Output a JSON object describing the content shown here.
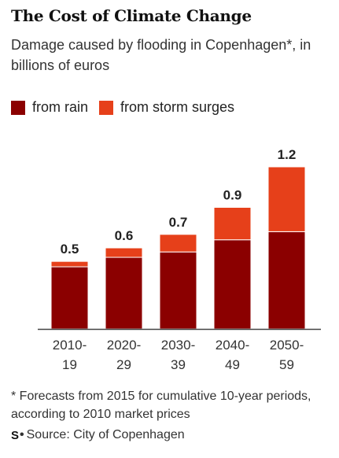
{
  "header": {
    "title": "The Cost of Climate Change",
    "subtitle": "Damage caused by flooding in Copenhagen*, in billions of euros"
  },
  "legend": {
    "rain_label": "from rain",
    "surge_label": "from storm surges"
  },
  "footer": {
    "footnote": "* Forecasts from 2015 for cumulative 10-year periods, according to 2010 market prices",
    "source_logo": "S",
    "source_dot": "•",
    "source_text": "Source: City of Copenhagen"
  },
  "colors": {
    "rain": "#8b0000",
    "surge": "#e6401a",
    "axis": "#444444"
  },
  "chart_data": {
    "type": "bar",
    "stacked": true,
    "categories": [
      "2010-19",
      "2020-29",
      "2030-39",
      "2040-49",
      "2050-59"
    ],
    "category_lines": [
      [
        "2010-",
        "19"
      ],
      [
        "2020-",
        "29"
      ],
      [
        "2030-",
        "39"
      ],
      [
        "2040-",
        "49"
      ],
      [
        "2050-",
        "59"
      ]
    ],
    "series": [
      {
        "name": "from rain",
        "values": [
          0.46,
          0.53,
          0.57,
          0.66,
          0.72
        ]
      },
      {
        "name": "from storm surges",
        "values": [
          0.04,
          0.07,
          0.13,
          0.24,
          0.48
        ]
      }
    ],
    "totals_labels": [
      "0.5",
      "0.6",
      "0.7",
      "0.9",
      "1.2"
    ],
    "ylim": [
      0,
      1.2
    ],
    "grid": false,
    "legend_position": "top-left"
  }
}
